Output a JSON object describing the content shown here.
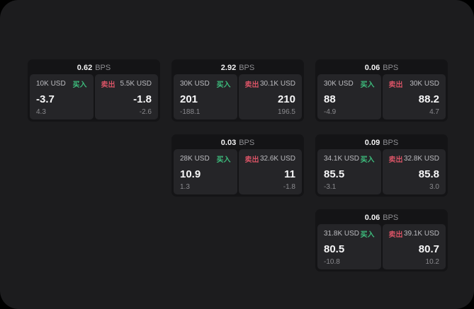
{
  "labels": {
    "bps": "BPS",
    "buy": "买入",
    "sell": "卖出"
  },
  "colors": {
    "background": "#000000",
    "panel_bg": "#1c1c1e",
    "card_bg": "#141416",
    "pane_bg": "#252528",
    "buy_green": "#3dbd7d",
    "sell_red": "#d75365",
    "value_white": "#f7f7f8",
    "muted_gray": "#8a8a8e"
  },
  "cards": [
    {
      "bps": "0.62",
      "buy": {
        "amount": "10K USD",
        "value": "-3.7",
        "delta": "4.3"
      },
      "sell": {
        "amount": "5.5K USD",
        "value": "-1.8",
        "delta": "-2.6"
      }
    },
    {
      "bps": "2.92",
      "buy": {
        "amount": "30K USD",
        "value": "201",
        "delta": "-188.1"
      },
      "sell": {
        "amount": "30.1K USD",
        "value": "210",
        "delta": "196.5"
      }
    },
    {
      "bps": "0.06",
      "buy": {
        "amount": "30K USD",
        "value": "88",
        "delta": "-4.9"
      },
      "sell": {
        "amount": "30K USD",
        "value": "88.2",
        "delta": "4.7"
      }
    },
    {
      "bps": "0.03",
      "buy": {
        "amount": "28K USD",
        "value": "10.9",
        "delta": "1.3"
      },
      "sell": {
        "amount": "32.6K USD",
        "value": "11",
        "delta": "-1.8"
      }
    },
    {
      "bps": "0.09",
      "buy": {
        "amount": "34.1K USD",
        "value": "85.5",
        "delta": "-3.1"
      },
      "sell": {
        "amount": "32.8K USD",
        "value": "85.8",
        "delta": "3.0"
      }
    },
    {
      "bps": "0.06",
      "buy": {
        "amount": "31.8K USD",
        "value": "80.5",
        "delta": "-10.8"
      },
      "sell": {
        "amount": "39.1K USD",
        "value": "80.7",
        "delta": "10.2"
      }
    }
  ]
}
